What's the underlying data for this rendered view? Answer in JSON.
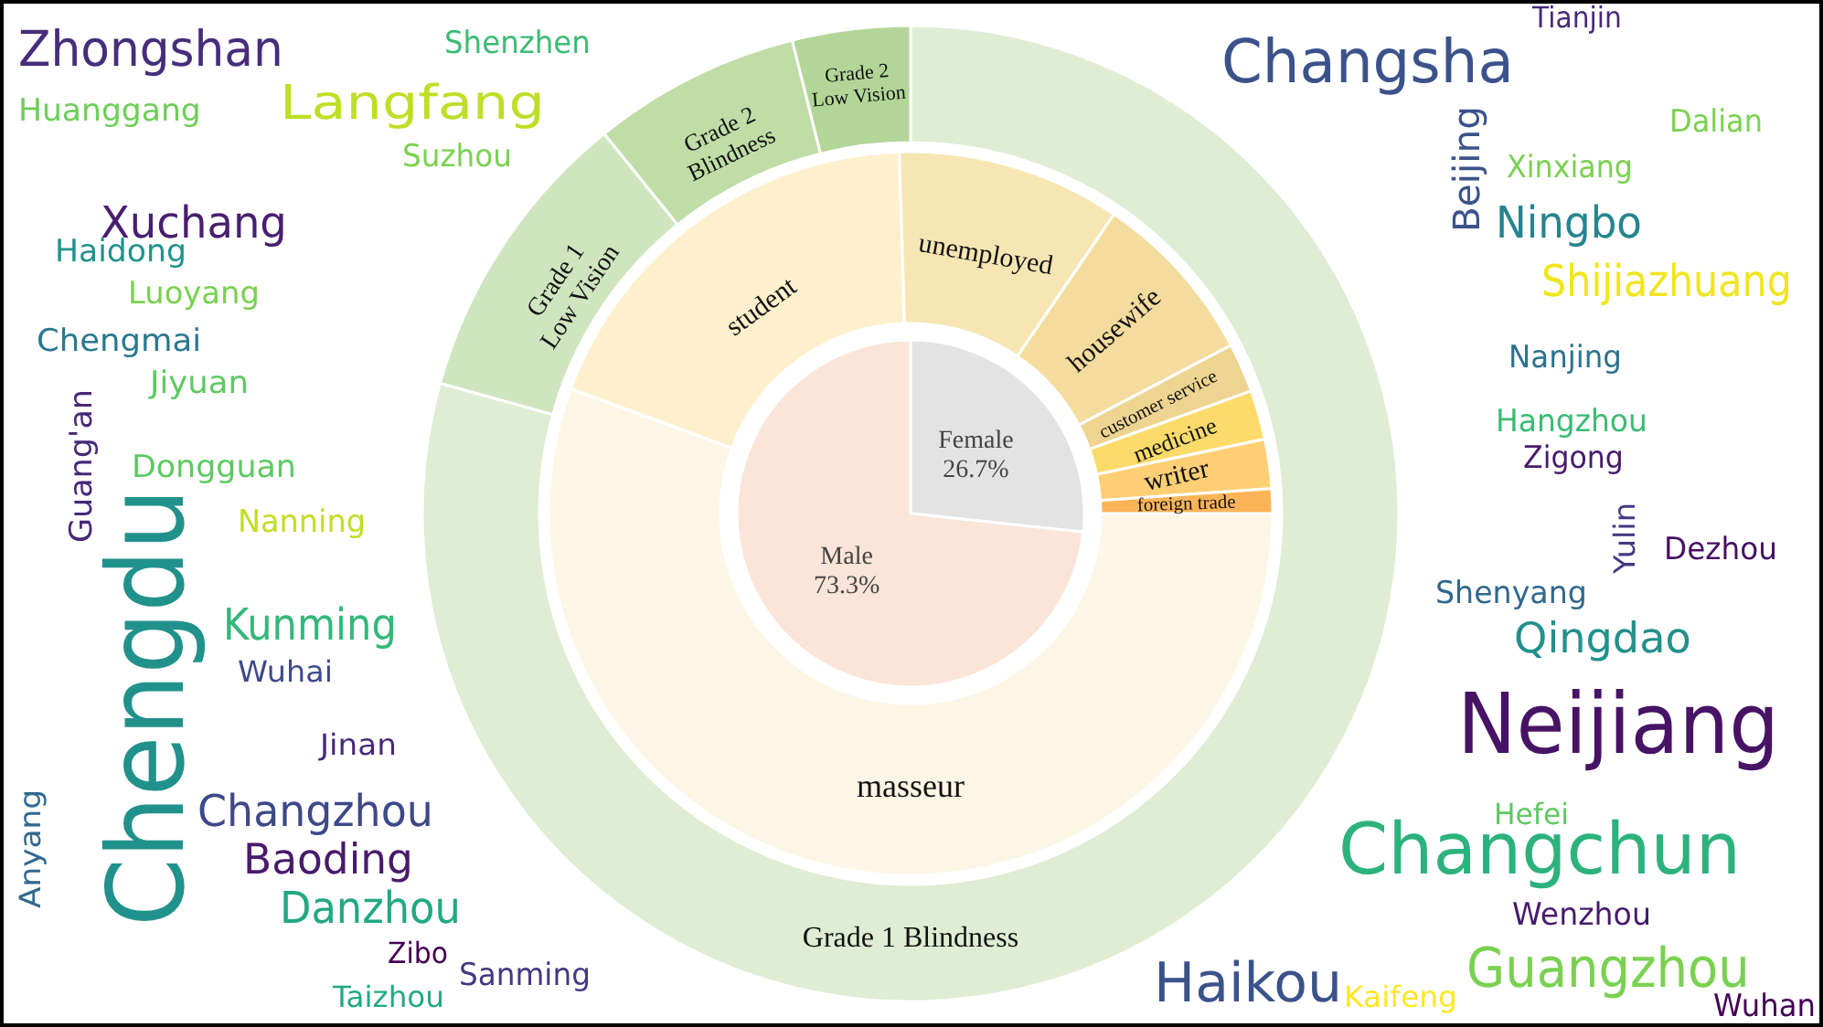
{
  "chart_data": [
    {
      "type": "pie",
      "categories": [
        "Female",
        "Male"
      ],
      "values": [
        26.7,
        73.3
      ],
      "value_labels": [
        "26.7%",
        "73.3%"
      ],
      "colors": [
        "#e3e3e3",
        "#fae5d8"
      ]
    },
    {
      "type": "donut",
      "categories": [
        "masseur",
        "student",
        "unemployed",
        "housewife",
        "customer service",
        "medicine",
        "writer",
        "foreign trade"
      ],
      "values": [
        55.6,
        18.9,
        10.0,
        7.8,
        2.2,
        2.2,
        2.2,
        1.1
      ],
      "colors": [
        "#fdf6e6",
        "#fef0cc",
        "#f7e6b4",
        "#f4dc9e",
        "#eed491",
        "#fddb6b",
        "#fecf75",
        "#fdb459"
      ]
    },
    {
      "type": "donut",
      "categories": [
        "Grade 1 Blindness",
        "Grade 1 Low Vision",
        "Grade 2 Blindness",
        "Grade 2 Low Vision"
      ],
      "values": [
        79.3,
        9.9,
        6.9,
        3.9
      ],
      "colors": [
        "#deedd3",
        "#cfe5bf",
        "#c0dda8",
        "#b2d697"
      ]
    },
    {
      "type": "other",
      "annotations": [
        "Zhongshan",
        "Huanggang",
        "Langfang",
        "Shenzhen",
        "Suzhou",
        "Xuchang",
        "Haidong",
        "Luoyang",
        "Chengmai",
        "Jiyuan",
        "Guang'an",
        "Dongguan",
        "Nanning",
        "Chengdu",
        "Kunming",
        "Wuhai",
        "Jinan",
        "Anyang",
        "Changzhou",
        "Baoding",
        "Danzhou",
        "Zibo",
        "Sanming",
        "Taizhou",
        "Changsha",
        "Tianjin",
        "Dalian",
        "Beijing",
        "Xinxiang",
        "Ningbo",
        "Shijiazhuang",
        "Nanjing",
        "Hangzhou",
        "Zigong",
        "Yulin",
        "Dezhou",
        "Shenyang",
        "Qingdao",
        "Neijiang",
        "Hefei",
        "Changchun",
        "Wenzhou",
        "Guangzhou",
        "Wuhan",
        "Haikou",
        "Kaifeng"
      ]
    }
  ]
}
